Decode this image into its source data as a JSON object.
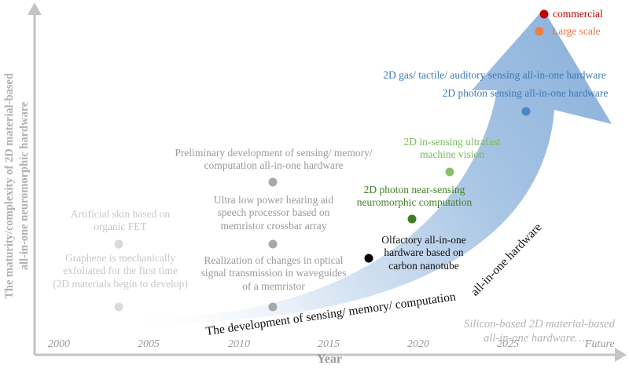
{
  "axes": {
    "y_title_line1": "The maturity/complexity of 2D material-based",
    "y_title_line2": "all-in-one neuromorphic hardware",
    "x_title": "Year",
    "x_ticks": [
      "2000",
      "2005",
      "2010",
      "2015",
      "2020",
      "2025",
      "Future"
    ]
  },
  "arrow_label_part1": "The development of sensing/ memory/ computation",
  "arrow_label_part2": "all-in-one hardware",
  "silicon_note_line1": "Silicon-based 2D material-based",
  "silicon_note_line2": "all-in-one hardware……",
  "milestones": [
    {
      "year": 2003.5,
      "lines": [
        "Graphene is mechanically",
        "exfoliated for the first time",
        "(2D materials begin to develop)"
      ],
      "color": "#d9d9d9"
    },
    {
      "year": 2003.5,
      "lines": [
        "Artificial skin based on",
        "organic FET"
      ],
      "color": "#d9d9d9"
    },
    {
      "year": 2012,
      "lines": [
        "Realization of changes in optical",
        "signal transmission in waveguides",
        "of a memristor"
      ],
      "color": "#a6a6a6"
    },
    {
      "year": 2012,
      "lines": [
        "Ultra low power hearing aid",
        "speech processor based on",
        "memristor crossbar array"
      ],
      "color": "#a6a6a6"
    },
    {
      "year": 2012,
      "lines": [
        "Preliminary development of sensing/ memory/",
        "computation all-in-one hardware"
      ],
      "color": "#a6a6a6"
    },
    {
      "year": 2017.5,
      "lines": [
        "Olfactory all-in-one",
        "hardware based on",
        "carbon nanotube"
      ],
      "color": "#000000"
    },
    {
      "year": 2019.5,
      "lines": [
        "2D photon near-sensing",
        "neuromorphic computation"
      ],
      "color": "#3f7f24"
    },
    {
      "year": 2021.5,
      "lines": [
        "2D in-sensing ultrafast",
        "machine vision"
      ],
      "color": "#7bbb5e"
    },
    {
      "year": 2026,
      "lines": [
        "2D photon sensing all-in-one hardware"
      ],
      "color": "#4a86c8"
    },
    {
      "year": 2026,
      "lines": [
        "2D gas/ tactile/ auditory sensing all-in-one hardware"
      ],
      "color": "#3d79b8"
    },
    {
      "year": 2026.5,
      "lines": [
        "Large scale"
      ],
      "color": "#ef7d3c"
    },
    {
      "year": 2026.5,
      "lines": [
        "commercial"
      ],
      "color": "#c00000"
    }
  ]
}
